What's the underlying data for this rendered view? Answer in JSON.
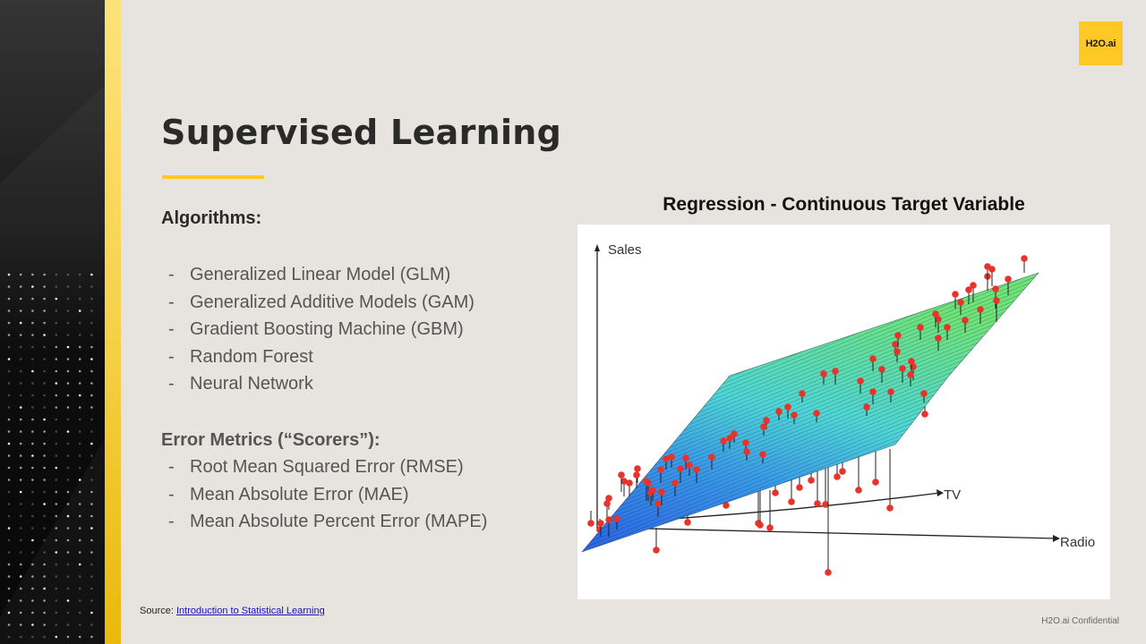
{
  "brand": {
    "logo_text": "H2O.ai",
    "accent_color": "#fec925",
    "footer_confidential": "H2O.ai Confidential"
  },
  "slide": {
    "title": "Supervised Learning",
    "algorithms": {
      "heading": "Algorithms:",
      "items": [
        "Generalized Linear Model (GLM)",
        "Generalized Additive Models (GAM)",
        "Gradient Boosting Machine (GBM)",
        "Random Forest",
        "Neural Network"
      ]
    },
    "metrics": {
      "heading": "Error Metrics (“Scorers”):",
      "items": [
        "Root Mean Squared Error (RMSE)",
        "Mean Absolute Error (MAE)",
        "Mean Absolute Percent Error (MAPE)"
      ]
    },
    "bullet_marker": "-",
    "source_label": "Source:",
    "source_link_text": "Introduction to Statistical Learning"
  },
  "figure": {
    "title": "Regression - Continuous Target Variable",
    "axes": {
      "y": "Sales",
      "x1": "TV",
      "x2": "Radio"
    },
    "colors": {
      "plane_low": "#2a6ee8",
      "plane_mid": "#4fd0d8",
      "plane_high": "#6be07a",
      "points": "#e8322a"
    }
  },
  "chart_data": {
    "type": "scatter",
    "title": "Regression - Continuous Target Variable",
    "subtype": "3d-scatter-with-regression-plane",
    "xlabel": "TV",
    "zlabel": "Radio",
    "ylabel": "Sales",
    "grid": false,
    "legend": null,
    "notes": "Red observations with vertical residual lines to a fitted least-squares plane; plane colored blue (low Sales) to green (high Sales)."
  }
}
